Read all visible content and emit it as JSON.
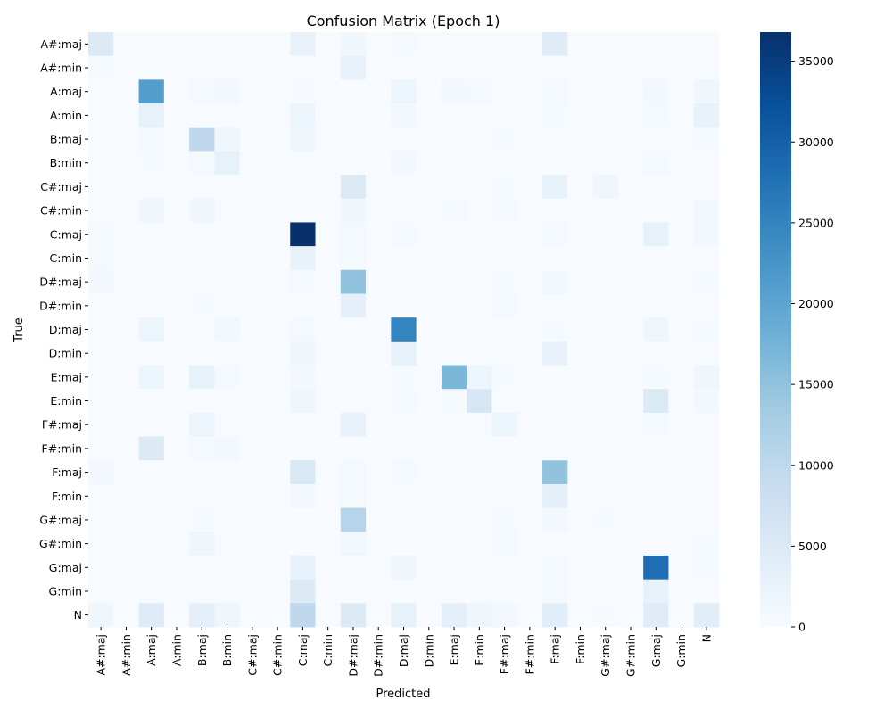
{
  "chart_data": {
    "type": "heatmap",
    "title": "Confusion Matrix (Epoch 1)",
    "xlabel": "Predicted",
    "ylabel": "True",
    "labels": [
      "A#:maj",
      "A#:min",
      "A:maj",
      "A:min",
      "B:maj",
      "B:min",
      "C#:maj",
      "C#:min",
      "C:maj",
      "C:min",
      "D#:maj",
      "D#:min",
      "D:maj",
      "D:min",
      "E:maj",
      "E:min",
      "F#:maj",
      "F#:min",
      "F:maj",
      "F:min",
      "G#:maj",
      "G#:min",
      "G:maj",
      "G:min",
      "N"
    ],
    "colorbar": {
      "min": 0,
      "max": 36800,
      "ticks": [
        0,
        5000,
        10000,
        15000,
        20000,
        25000,
        30000,
        35000
      ],
      "colormap": "Blues",
      "stops": [
        "#f7fbff",
        "#deebf7",
        "#c6dbef",
        "#9ecae1",
        "#6baed6",
        "#4292c6",
        "#2171b5",
        "#08519c",
        "#08306b"
      ]
    },
    "matrix": [
      [
        5000,
        0,
        0,
        0,
        0,
        0,
        0,
        0,
        2500,
        0,
        1500,
        0,
        500,
        0,
        0,
        0,
        0,
        0,
        4500,
        0,
        0,
        0,
        0,
        0,
        0
      ],
      [
        600,
        0,
        0,
        0,
        0,
        0,
        0,
        0,
        0,
        0,
        2500,
        0,
        0,
        0,
        0,
        0,
        0,
        0,
        0,
        0,
        0,
        0,
        0,
        0,
        0
      ],
      [
        0,
        0,
        21000,
        0,
        500,
        800,
        0,
        0,
        200,
        0,
        0,
        0,
        2000,
        0,
        800,
        500,
        0,
        0,
        500,
        0,
        0,
        0,
        1000,
        0,
        1500
      ],
      [
        0,
        0,
        3000,
        0,
        0,
        0,
        0,
        0,
        2000,
        0,
        0,
        0,
        1000,
        0,
        0,
        0,
        0,
        0,
        300,
        0,
        0,
        0,
        600,
        0,
        2500
      ],
      [
        0,
        0,
        500,
        0,
        10000,
        1500,
        0,
        0,
        1500,
        0,
        0,
        0,
        0,
        0,
        0,
        0,
        300,
        0,
        0,
        0,
        0,
        0,
        0,
        0,
        600
      ],
      [
        0,
        0,
        300,
        0,
        500,
        3000,
        0,
        0,
        0,
        0,
        0,
        0,
        1000,
        0,
        0,
        0,
        0,
        0,
        0,
        0,
        0,
        0,
        500,
        0,
        0
      ],
      [
        0,
        0,
        0,
        0,
        0,
        0,
        0,
        0,
        0,
        0,
        5000,
        0,
        0,
        0,
        0,
        0,
        300,
        0,
        3000,
        0,
        1500,
        0,
        0,
        0,
        0
      ],
      [
        0,
        0,
        1500,
        0,
        1500,
        0,
        0,
        0,
        0,
        0,
        1500,
        0,
        0,
        0,
        500,
        0,
        500,
        0,
        0,
        0,
        0,
        0,
        0,
        0,
        800
      ],
      [
        500,
        0,
        0,
        0,
        0,
        0,
        0,
        0,
        36800,
        0,
        500,
        0,
        500,
        0,
        0,
        0,
        0,
        0,
        500,
        0,
        0,
        0,
        3000,
        0,
        800
      ],
      [
        600,
        0,
        0,
        0,
        0,
        0,
        0,
        0,
        2500,
        0,
        500,
        0,
        0,
        0,
        0,
        0,
        0,
        0,
        0,
        0,
        0,
        0,
        0,
        0,
        0
      ],
      [
        1000,
        0,
        0,
        0,
        0,
        0,
        0,
        0,
        600,
        0,
        15000,
        0,
        0,
        0,
        0,
        0,
        300,
        0,
        1200,
        0,
        0,
        0,
        0,
        0,
        600
      ],
      [
        0,
        0,
        0,
        0,
        300,
        0,
        0,
        0,
        0,
        0,
        3500,
        0,
        0,
        0,
        0,
        0,
        600,
        0,
        0,
        0,
        0,
        0,
        0,
        0,
        0
      ],
      [
        0,
        0,
        2000,
        0,
        0,
        1200,
        0,
        0,
        600,
        0,
        0,
        0,
        25000,
        0,
        0,
        0,
        0,
        0,
        300,
        0,
        0,
        0,
        1500,
        0,
        300
      ],
      [
        0,
        0,
        0,
        0,
        0,
        0,
        0,
        0,
        1500,
        0,
        0,
        0,
        3000,
        0,
        0,
        0,
        0,
        0,
        2500,
        0,
        0,
        0,
        0,
        0,
        0
      ],
      [
        0,
        0,
        2000,
        0,
        3000,
        500,
        0,
        0,
        800,
        0,
        0,
        0,
        300,
        0,
        17000,
        2000,
        300,
        0,
        0,
        0,
        0,
        0,
        300,
        0,
        1500
      ],
      [
        0,
        0,
        0,
        0,
        0,
        0,
        0,
        0,
        1500,
        0,
        0,
        0,
        500,
        0,
        600,
        6000,
        0,
        0,
        0,
        0,
        0,
        0,
        5000,
        0,
        1000
      ],
      [
        0,
        0,
        0,
        0,
        1800,
        0,
        0,
        0,
        0,
        0,
        2500,
        0,
        0,
        0,
        0,
        0,
        1800,
        0,
        0,
        0,
        0,
        0,
        500,
        0,
        0
      ],
      [
        0,
        0,
        5000,
        0,
        500,
        800,
        0,
        0,
        0,
        0,
        0,
        0,
        0,
        0,
        0,
        0,
        0,
        0,
        0,
        0,
        0,
        0,
        0,
        0,
        0
      ],
      [
        800,
        0,
        0,
        0,
        0,
        0,
        0,
        0,
        5500,
        0,
        500,
        0,
        600,
        0,
        0,
        0,
        0,
        0,
        15000,
        0,
        0,
        0,
        0,
        0,
        0
      ],
      [
        0,
        0,
        0,
        0,
        0,
        0,
        0,
        0,
        800,
        0,
        500,
        0,
        0,
        0,
        0,
        0,
        0,
        0,
        3500,
        0,
        0,
        0,
        0,
        0,
        0
      ],
      [
        0,
        0,
        0,
        0,
        300,
        0,
        0,
        0,
        0,
        0,
        11000,
        0,
        0,
        0,
        0,
        0,
        300,
        0,
        800,
        0,
        300,
        0,
        0,
        0,
        0
      ],
      [
        0,
        0,
        0,
        0,
        1500,
        0,
        0,
        0,
        0,
        0,
        1200,
        0,
        0,
        0,
        0,
        0,
        600,
        0,
        0,
        0,
        0,
        0,
        0,
        0,
        300
      ],
      [
        0,
        0,
        0,
        0,
        0,
        0,
        0,
        0,
        3000,
        0,
        0,
        0,
        1500,
        0,
        0,
        0,
        0,
        0,
        500,
        0,
        0,
        0,
        28000,
        0,
        300
      ],
      [
        0,
        0,
        0,
        0,
        0,
        0,
        0,
        0,
        5000,
        0,
        0,
        0,
        0,
        0,
        0,
        0,
        0,
        0,
        600,
        0,
        0,
        0,
        3000,
        0,
        0
      ],
      [
        1500,
        0,
        4500,
        0,
        3500,
        1500,
        0,
        0,
        10000,
        0,
        5000,
        0,
        3000,
        0,
        3500,
        1500,
        800,
        0,
        4000,
        0,
        300,
        0,
        4500,
        0,
        4000
      ]
    ]
  }
}
